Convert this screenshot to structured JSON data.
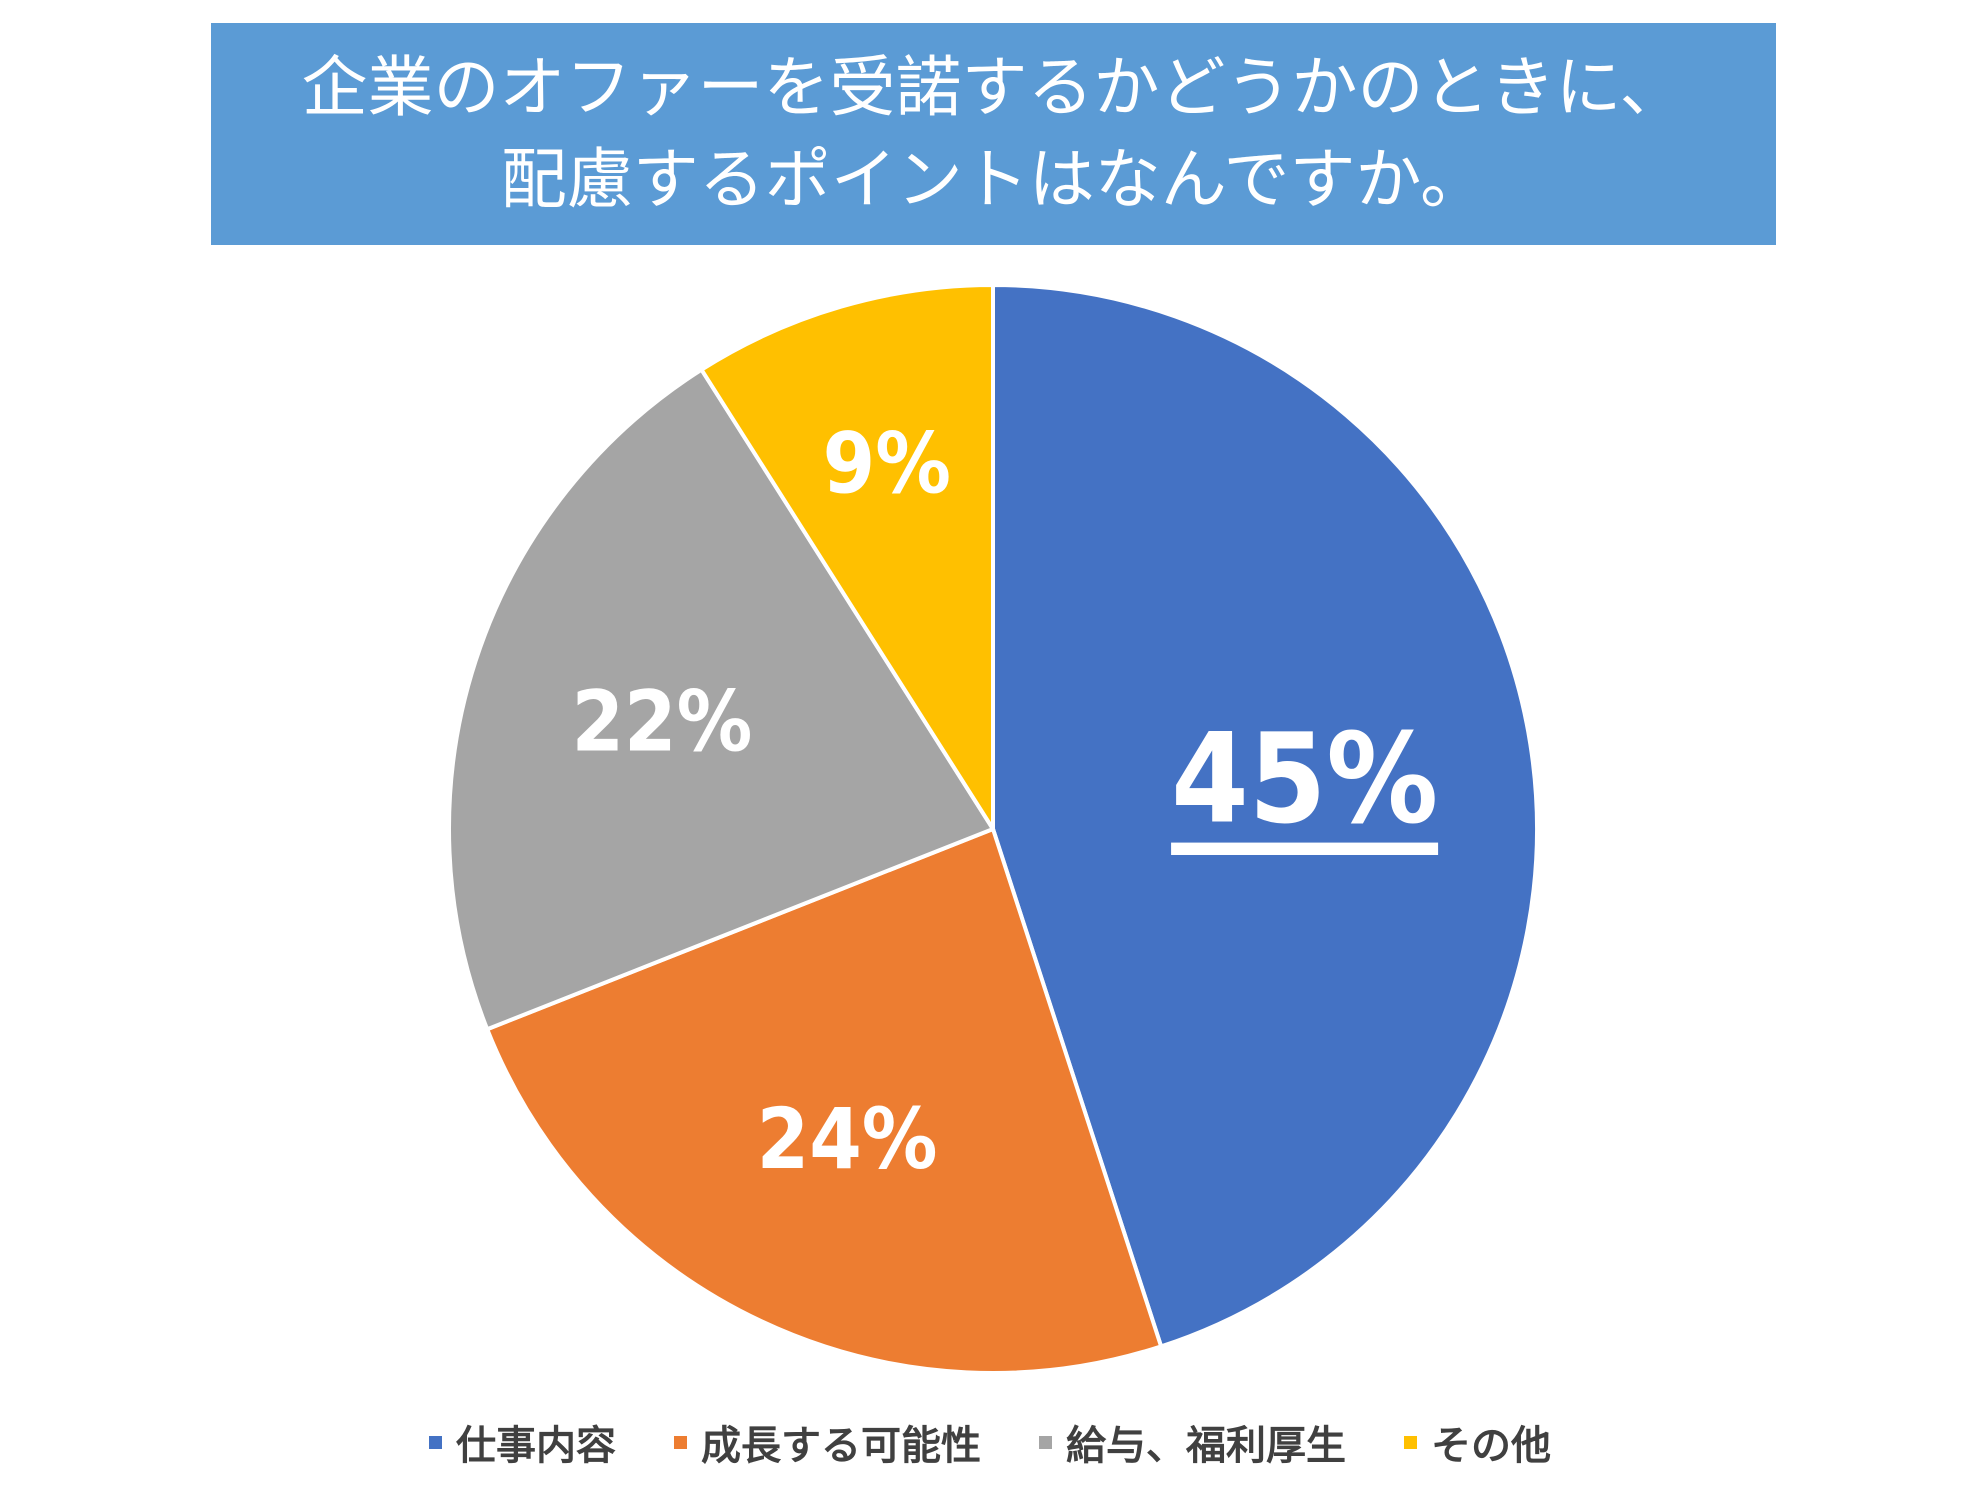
{
  "chart_data": {
    "type": "pie",
    "title_lines": [
      "企業のオファーを受諾するかどうかのときに、",
      "配慮するポイントはなんですか。"
    ],
    "categories": [
      "仕事内容",
      "成長する可能性",
      "給与、福利厚生",
      "その他"
    ],
    "values": [
      45,
      24,
      22,
      9
    ],
    "data_labels": [
      "45%",
      "24%",
      "22%",
      "9%"
    ],
    "colors": [
      "#4472c4",
      "#ed7d31",
      "#a5a5a5",
      "#ffc000"
    ],
    "highlighted_label_index": 0,
    "legend_position": "bottom"
  }
}
